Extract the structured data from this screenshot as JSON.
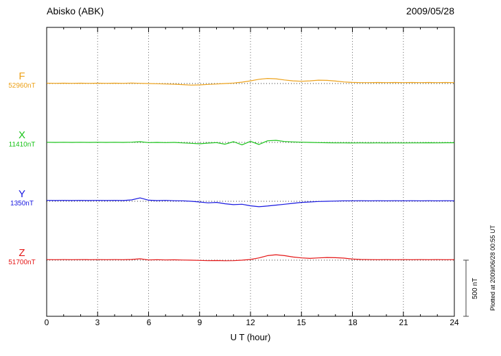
{
  "header": {
    "title": "Abisko (ABK)",
    "date": "2009/05/28"
  },
  "axis": {
    "xlabel": "U T (hour)",
    "tick_hours": [
      0,
      3,
      6,
      9,
      12,
      15,
      18,
      21,
      24
    ]
  },
  "scale_bar": {
    "label": "500 nT",
    "span_nT": 500
  },
  "side_note": "Plotted at 2009/06/28 00:55 UT",
  "chart_data": {
    "type": "line",
    "title": "Abisko (ABK) magnetogram",
    "xlabel": "U T (hour)",
    "x_start_hour": 0,
    "x_step_hours": 0.5,
    "x_end_hour": 24,
    "gridlines": "vertical dotted every 3 hours; dotted horizontal baseline per trace",
    "values_are": "deviation in nT from each component baseline",
    "series": [
      {
        "name": "F",
        "baseline_label": "52960nT",
        "baseline_nT": 52960,
        "color": "#eda118",
        "deviation_nT": [
          3,
          2,
          3,
          2,
          3,
          2,
          3,
          2,
          3,
          2,
          4,
          2,
          0,
          -2,
          -4,
          -6,
          -10,
          -14,
          -12,
          -8,
          -4,
          0,
          4,
          12,
          24,
          38,
          45,
          42,
          32,
          24,
          20,
          24,
          30,
          28,
          22,
          14,
          10,
          8,
          8,
          9,
          8,
          9,
          8,
          9,
          8,
          9,
          8,
          9,
          8
        ]
      },
      {
        "name": "X",
        "baseline_label": "11410nT",
        "baseline_nT": 11410,
        "color": "#17c217",
        "deviation_nT": [
          1,
          0,
          1,
          0,
          1,
          0,
          1,
          0,
          1,
          0,
          2,
          6,
          -2,
          0,
          -2,
          0,
          -4,
          -8,
          -12,
          -6,
          -2,
          -16,
          6,
          -22,
          10,
          -18,
          14,
          18,
          8,
          4,
          2,
          0,
          -2,
          -3,
          -4,
          -4,
          -5,
          -4,
          -5,
          -4,
          -5,
          -4,
          -5,
          -4,
          -4,
          -3,
          -4,
          -3,
          -3
        ]
      },
      {
        "name": "Y",
        "baseline_label": "1350nT",
        "baseline_nT": 1350,
        "color": "#1414e0",
        "deviation_nT": [
          8,
          7,
          8,
          7,
          8,
          7,
          8,
          7,
          8,
          7,
          12,
          30,
          10,
          6,
          8,
          5,
          4,
          0,
          -6,
          -14,
          -10,
          -22,
          -30,
          -26,
          -40,
          -48,
          -42,
          -34,
          -26,
          -18,
          -10,
          -6,
          -2,
          0,
          2,
          4,
          4,
          5,
          4,
          5,
          4,
          5,
          4,
          5,
          4,
          5,
          4,
          5,
          4
        ]
      },
      {
        "name": "Z",
        "baseline_label": "51700nT",
        "baseline_nT": 51700,
        "color": "#e41414",
        "deviation_nT": [
          5,
          4,
          5,
          4,
          5,
          4,
          5,
          4,
          5,
          4,
          6,
          12,
          2,
          4,
          2,
          3,
          1,
          0,
          -2,
          -4,
          -3,
          -5,
          -4,
          0,
          6,
          20,
          40,
          48,
          40,
          28,
          20,
          16,
          20,
          24,
          22,
          18,
          10,
          6,
          5,
          4,
          5,
          4,
          5,
          4,
          5,
          4,
          5,
          4,
          5
        ]
      }
    ]
  }
}
